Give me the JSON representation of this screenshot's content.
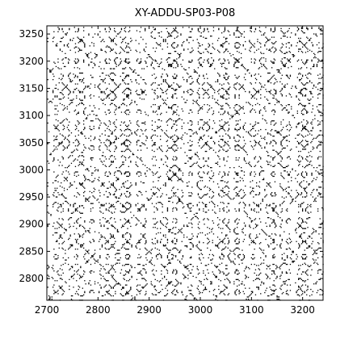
{
  "chart_data": {
    "type": "scatter",
    "title": "XY-ADDU-SP03-P08",
    "xlabel": "",
    "ylabel": "",
    "xlim": [
      2700,
      3240
    ],
    "ylim": [
      2760,
      3265
    ],
    "x_ticks": [
      "2700",
      "2800",
      "2900",
      "3000",
      "3100",
      "3200"
    ],
    "y_ticks": [
      "2800",
      "2850",
      "2900",
      "2950",
      "3000",
      "3050",
      "3100",
      "3150",
      "3200",
      "3250"
    ],
    "grid": false,
    "legend": "none",
    "marker_color": "#000000",
    "description_of_points": "Dense recurrence-plot style point cloud; points drawn where x and y share a recurring state (symmetric about the diagonal)."
  }
}
